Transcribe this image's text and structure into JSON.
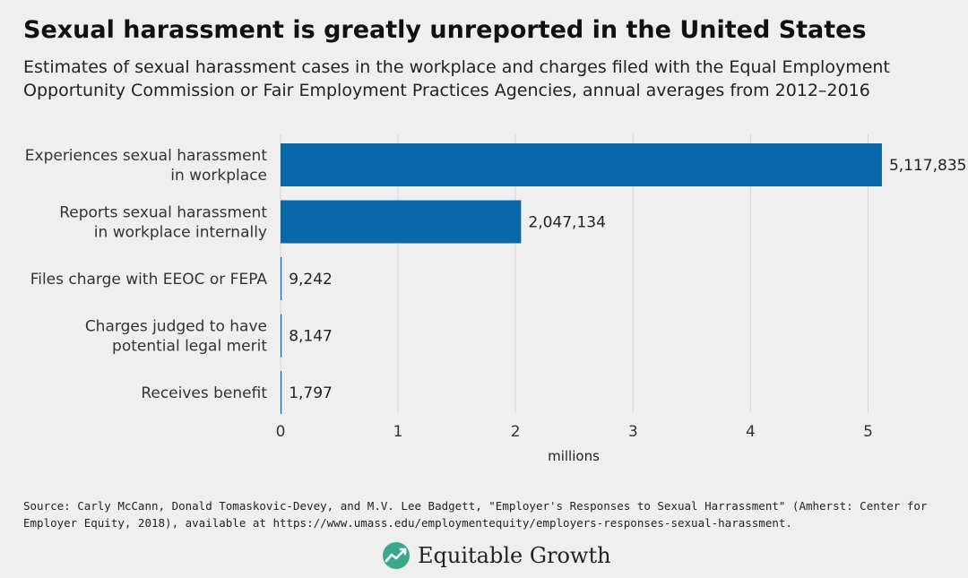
{
  "header": {
    "title": "Sexual harassment is greatly unreported in the United States",
    "subtitle_lines": [
      "Estimates of sexual harassment cases in the workplace and charges filed with the Equal Employment",
      "Opportunity Commission or Fair Employment Practices Agencies, annual averages from 2012–2016"
    ]
  },
  "chart_data": {
    "type": "bar",
    "orientation": "horizontal",
    "categories": [
      [
        "Experiences sexual harassment",
        "in workplace"
      ],
      [
        "Reports sexual harassment",
        "in workplace internally"
      ],
      [
        "Files charge with EEOC or FEPA"
      ],
      [
        "Charges judged to have",
        "potential legal merit"
      ],
      [
        "Receives benefit"
      ]
    ],
    "values": [
      5117835,
      2047134,
      9242,
      8147,
      1797
    ],
    "value_labels": [
      "5,117,835",
      "2,047,134",
      "9,242",
      "8,147",
      "1,797"
    ],
    "xlabel": "millions",
    "xlim": [
      0,
      5.2
    ],
    "x_ticks": [
      0,
      1,
      2,
      3,
      4,
      5
    ],
    "x_tick_labels": [
      "0",
      "1",
      "2",
      "3",
      "4",
      "5"
    ],
    "grid": "vertical",
    "bar_color": "#0868a8"
  },
  "footer": {
    "source_lines": [
      "Source: Carly McCann, Donald Tomaskovic-Devey, and M.V. Lee Badgett, \"Employer's Responses to Sexual Harrassment\" (Amherst: Center for",
      "Employer Equity, 2018), available at https://www.umass.edu/employmentequity/employers-responses-sexual-harassment."
    ],
    "brand": "Equitable Growth",
    "brand_color": "#3aa88a"
  }
}
